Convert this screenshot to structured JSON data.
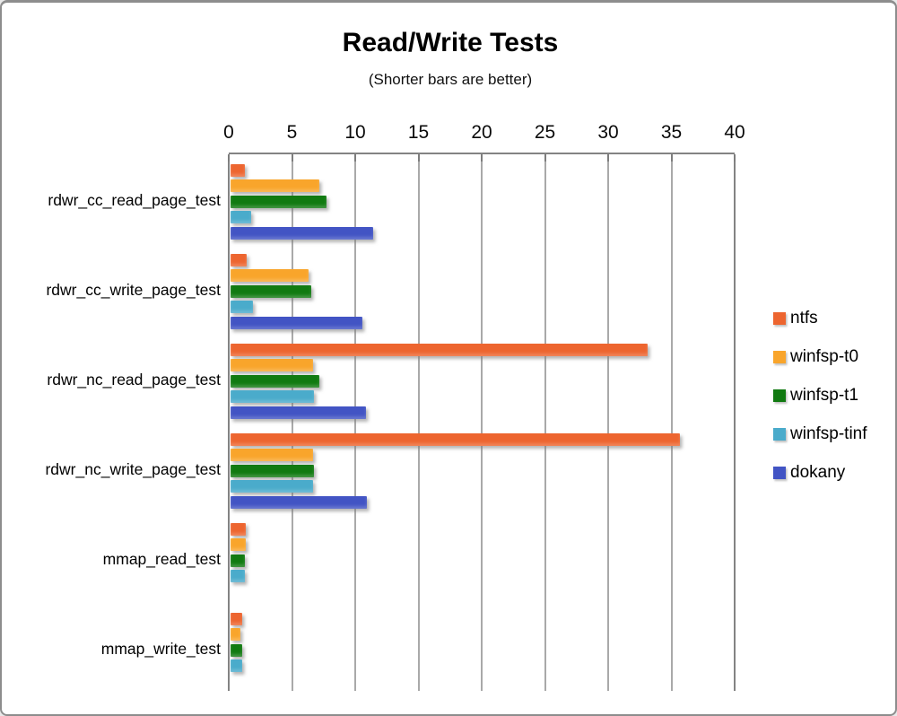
{
  "header": {
    "title": "Read/Write Tests",
    "subtitle": "(Shorter bars are better)"
  },
  "chart_data": {
    "type": "bar",
    "orientation": "horizontal",
    "title": "Read/Write Tests",
    "subtitle": "(Shorter bars are better)",
    "categories": [
      "rdwr_cc_read_page_test",
      "rdwr_cc_write_page_test",
      "rdwr_nc_read_page_test",
      "rdwr_nc_write_page_test",
      "mmap_read_test",
      "mmap_write_test"
    ],
    "series": [
      {
        "name": "ntfs",
        "color": "#ED652F",
        "values": [
          1.1,
          1.3,
          33.0,
          35.5,
          1.2,
          0.9
        ]
      },
      {
        "name": "winfsp-t0",
        "color": "#F9A52B",
        "values": [
          7.0,
          6.2,
          6.5,
          6.5,
          1.2,
          0.8
        ]
      },
      {
        "name": "winfsp-t1",
        "color": "#117A11",
        "values": [
          7.6,
          6.4,
          7.0,
          6.6,
          1.1,
          0.9
        ]
      },
      {
        "name": "winfsp-tinf",
        "color": "#4AABCB",
        "values": [
          1.6,
          1.8,
          6.6,
          6.5,
          1.1,
          0.9
        ]
      },
      {
        "name": "dokany",
        "color": "#4254C4",
        "values": [
          11.3,
          10.4,
          10.7,
          10.8,
          0,
          0
        ]
      }
    ],
    "xlim": [
      0,
      40
    ],
    "xticks": [
      0,
      5,
      10,
      15,
      20,
      25,
      30,
      35,
      40
    ],
    "xlabel": "",
    "ylabel": "",
    "grid": "vertical",
    "legend_position": "right",
    "axis_colors": {
      "gridline": "#a9a9a9",
      "axis": "#838383"
    }
  }
}
